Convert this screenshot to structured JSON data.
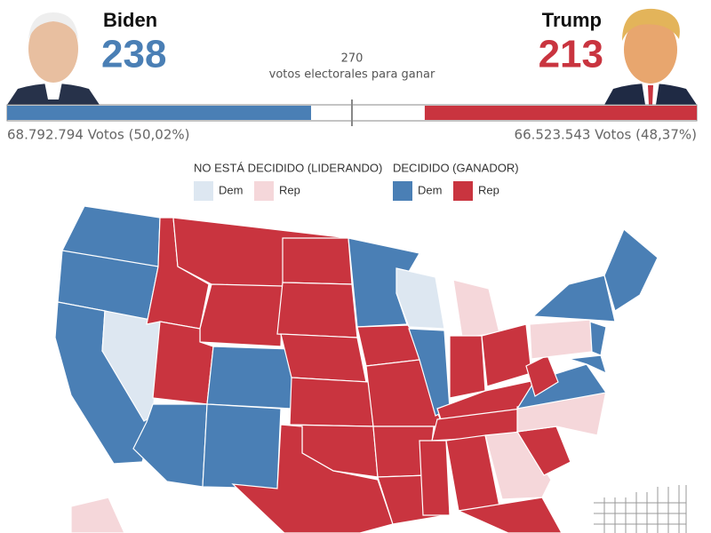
{
  "header": {
    "left": {
      "name": "Biden",
      "electoral_votes": 238,
      "popular_vote": "68.792.794 Votos (50,02%)",
      "color": "#4a7fb5"
    },
    "right": {
      "name": "Trump",
      "electoral_votes": 213,
      "popular_vote": "66.523.543 Votos (48,37%)",
      "color": "#c9343f"
    },
    "threshold": {
      "value": 270,
      "caption": "votos electorales para ganar"
    }
  },
  "legend": {
    "undecided": {
      "title": "NO ESTÁ DECIDIDO (LIDERANDO)",
      "items": [
        "Dem",
        "Rep"
      ]
    },
    "decided": {
      "title": "DECIDIDO (GANADOR)",
      "items": [
        "Dem",
        "Rep"
      ]
    }
  }
}
